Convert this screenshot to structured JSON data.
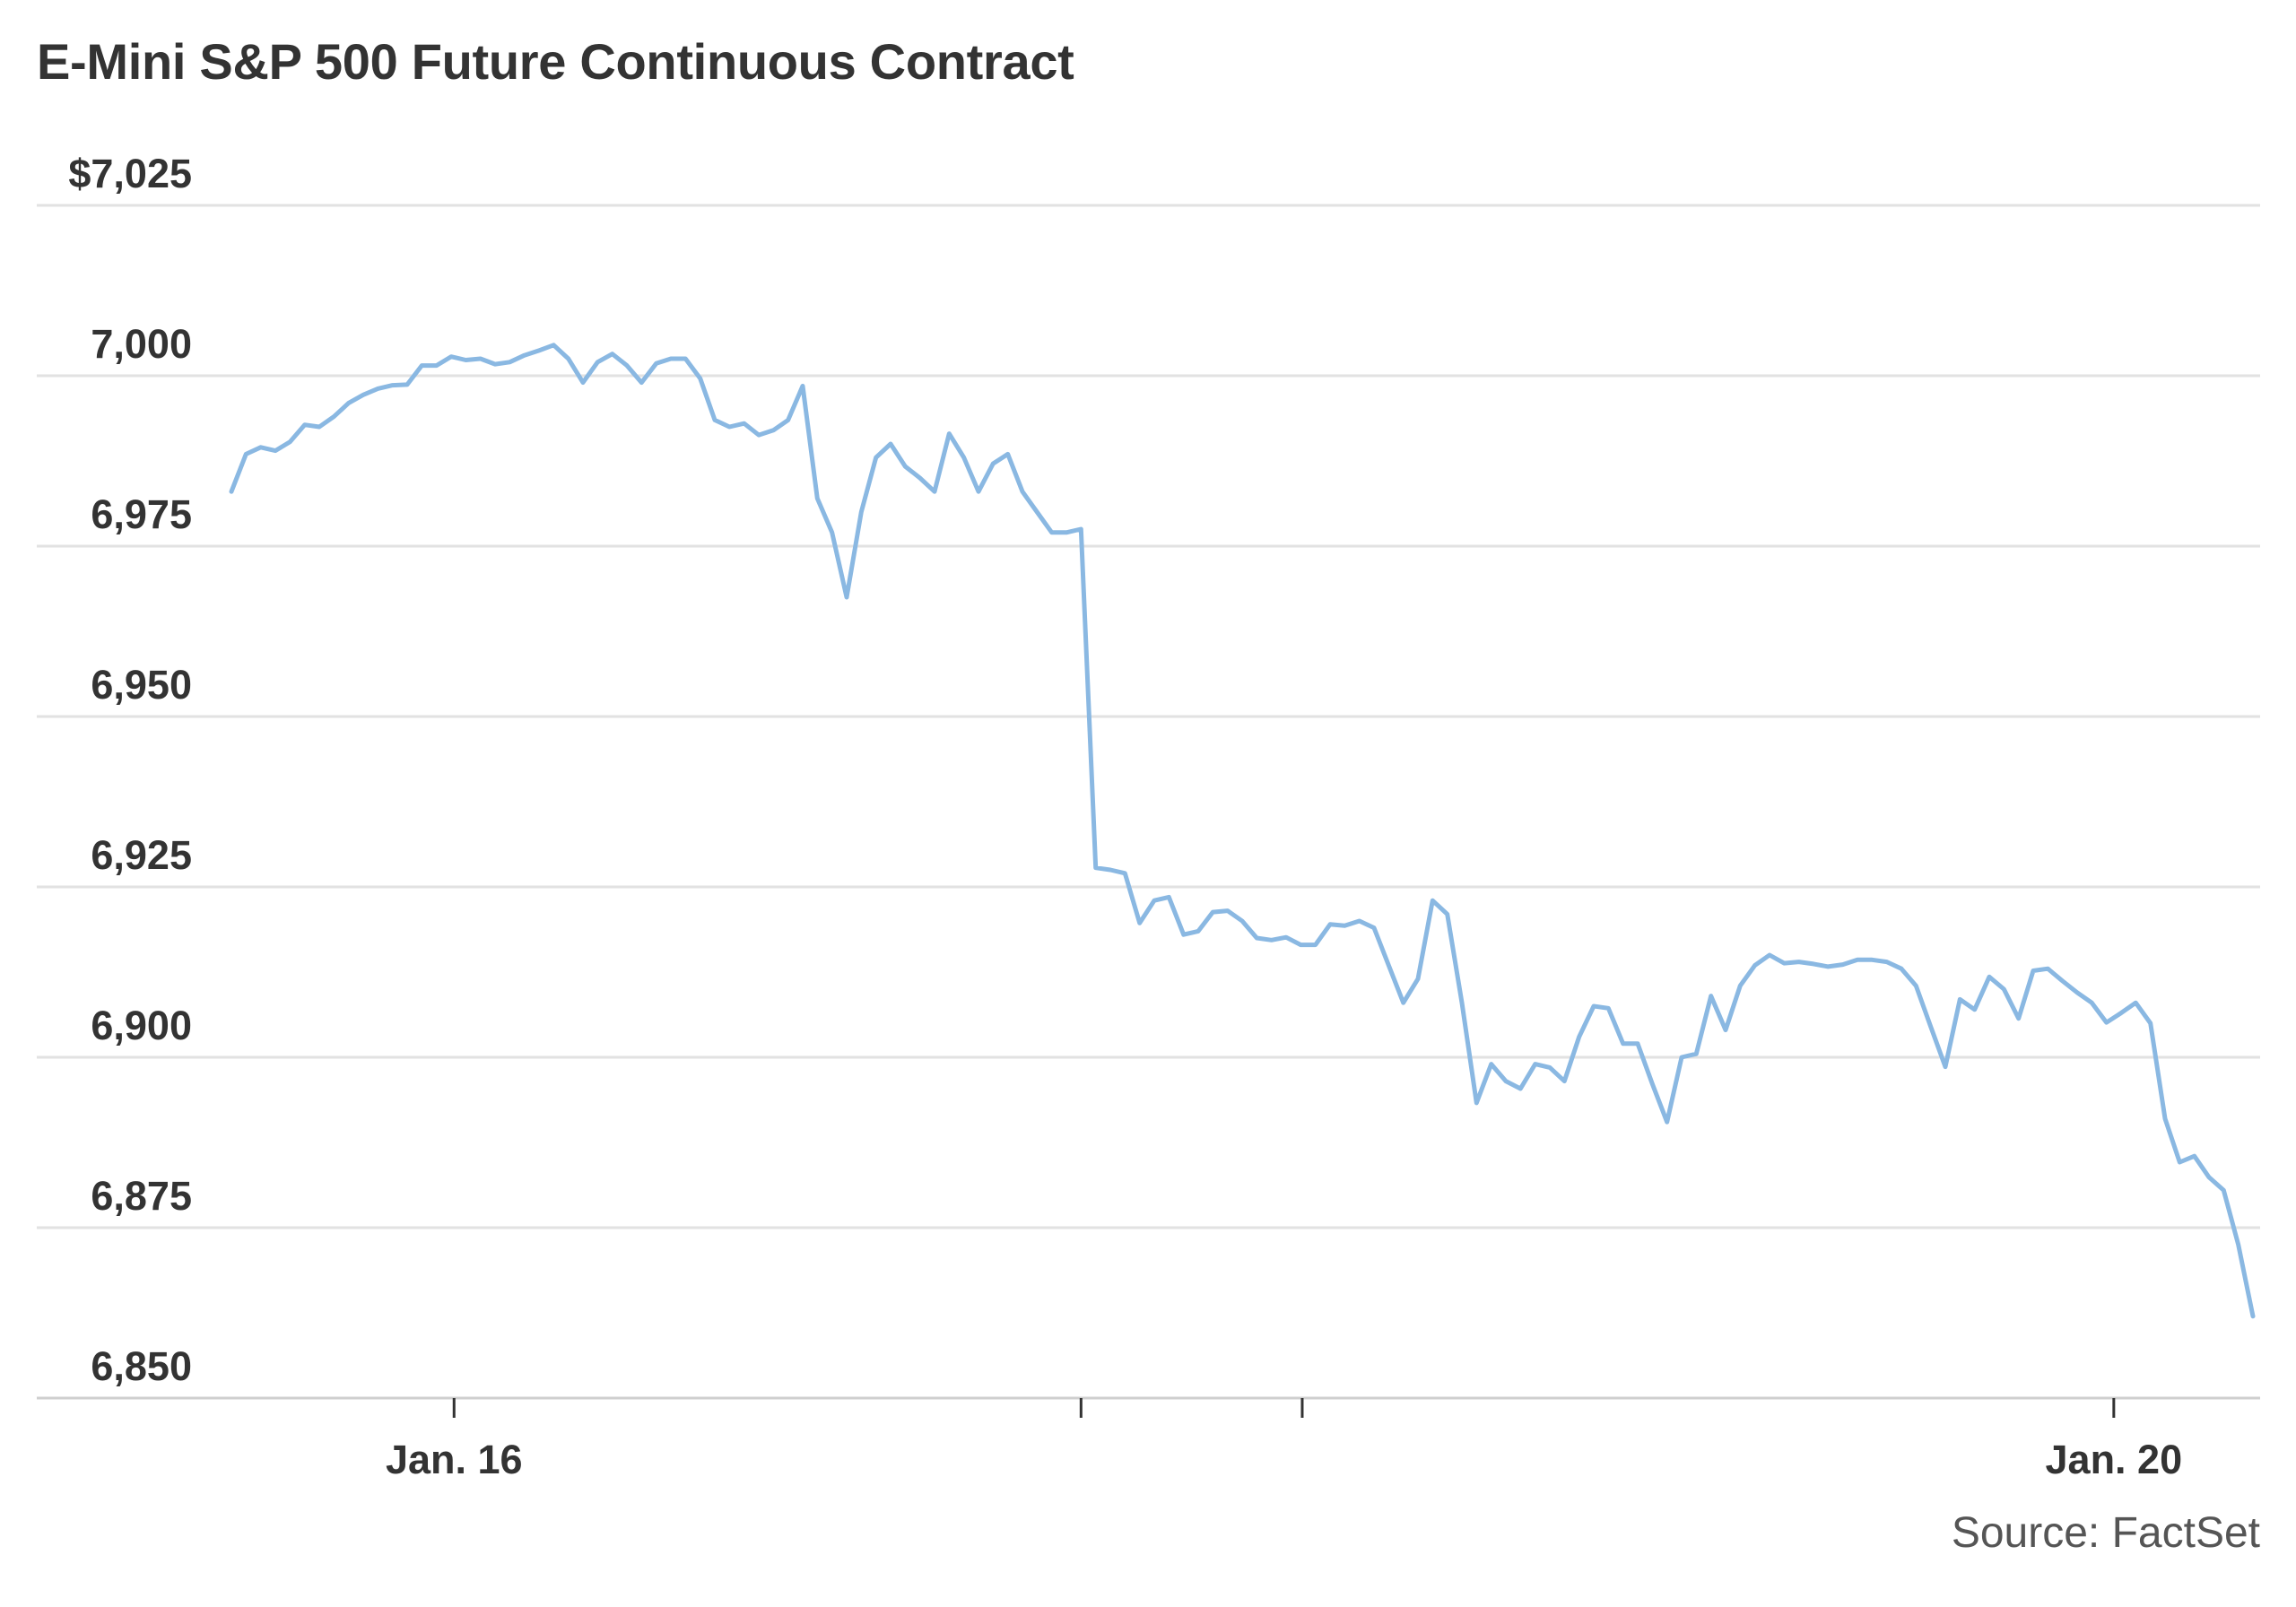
{
  "chart_data": {
    "type": "line",
    "title": "E-Mini S&P 500 Future Continuous Contract",
    "source": "Source: FactSet",
    "xlabel": "",
    "ylabel": "",
    "ylim": [
      6850,
      7025
    ],
    "y_ticks": [
      {
        "value": 7025,
        "label": "$7,025"
      },
      {
        "value": 7000,
        "label": "7,000"
      },
      {
        "value": 6975,
        "label": "6,975"
      },
      {
        "value": 6950,
        "label": "6,950"
      },
      {
        "value": 6925,
        "label": "6,925"
      },
      {
        "value": 6900,
        "label": "6,900"
      },
      {
        "value": 6875,
        "label": "6,875"
      },
      {
        "value": 6850,
        "label": "6,850"
      }
    ],
    "x_ticks": [
      {
        "point": 15.2,
        "label": "Jan. 16"
      },
      {
        "point": 58,
        "label": ""
      },
      {
        "point": 73.1,
        "label": ""
      },
      {
        "point": 128.5,
        "label": "Jan. 20"
      }
    ],
    "grid": true,
    "line_color": "#8ab8e2",
    "values": [
      6983,
      6988.5,
      6989.5,
      6989,
      6990.3,
      6992.8,
      6992.5,
      6994,
      6996,
      6997.2,
      6998.1,
      6998.6,
      6998.7,
      7001.5,
      7001.5,
      7002.8,
      7002.3,
      7002.5,
      7001.7,
      7002,
      7003,
      7003.7,
      7004.5,
      7002.5,
      6999,
      7002,
      7003.2,
      7001.5,
      6999,
      7001.8,
      7002.5,
      7002.5,
      6999.6,
      6993.5,
      6992.5,
      6993,
      6991.3,
      6992,
      6993.5,
      6998.5,
      6982,
      6977,
      6967.5,
      6980,
      6988,
      6990,
      6986.7,
      6985,
      6983,
      6991.5,
      6988,
      6983,
      6987.1,
      6988.5,
      6983,
      6980,
      6977,
      6977,
      6977.5,
      6927.8,
      6927.5,
      6927,
      6919.7,
      6923,
      6923.5,
      6918,
      6918.5,
      6921.3,
      6921.5,
      6920,
      6917.5,
      6917.2,
      6917.6,
      6916.5,
      6916.5,
      6919.5,
      6919.3,
      6920,
      6919,
      6913.5,
      6908,
      6911.5,
      6923,
      6921,
      6908,
      6893.3,
      6899,
      6896.5,
      6895.4,
      6899,
      6898.5,
      6896.5,
      6903,
      6907.5,
      6907.2,
      6902,
      6902,
      6896.1,
      6890.5,
      6900,
      6900.5,
      6909,
      6904,
      6910.5,
      6913.5,
      6915,
      6913.8,
      6914,
      6913.7,
      6913.3,
      6913.6,
      6914.3,
      6914.3,
      6914,
      6913,
      6910.5,
      6904.5,
      6898.6,
      6908.5,
      6907,
      6911.8,
      6910,
      6905.7,
      6912.7,
      6913,
      6911.2,
      6909.5,
      6908,
      6905.1,
      6906.5,
      6908,
      6905,
      6891,
      6884.6,
      6885.5,
      6882.4,
      6880.5,
      6872.5,
      6862
    ]
  }
}
